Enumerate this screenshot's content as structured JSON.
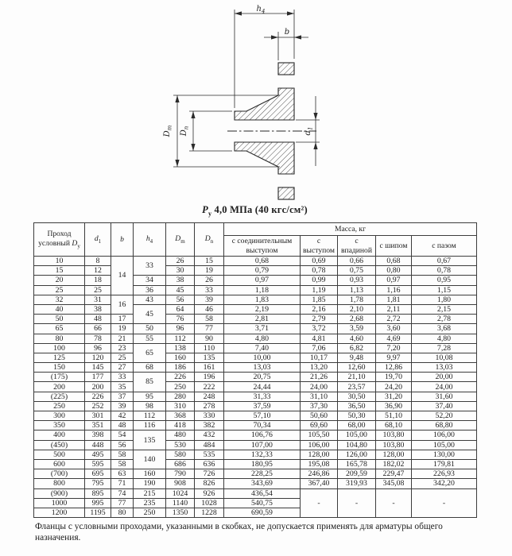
{
  "title": {
    "p": "P",
    "p_sub": "у",
    "rest": "4,0 МПа (40 кгс/см²)"
  },
  "footnote": "Фланцы с условными проходами, указанными в скобках, не допускается применять для арматуры общего назначения.",
  "drawing": {
    "labels": {
      "h_base": "h",
      "h_sub": "4",
      "b": "b",
      "dm_base": "D",
      "dm_sub": "m",
      "dn_base": "D",
      "dn_sub": "n",
      "d1_base": "d",
      "d1_sub": "1"
    }
  },
  "table": {
    "header": {
      "col1_line1": "Проход",
      "col1_line2": "условный",
      "col1_sym": "D",
      "col1_sub": "у",
      "d1_sym": "d",
      "d1_sub": "1",
      "b_sym": "b",
      "h4_sym": "h",
      "h4_sub": "4",
      "dm_sym": "D",
      "dm_sub": "m",
      "dn_sym": "D",
      "dn_sub": "n",
      "massa": "Масса, кг",
      "m1_line1": "с соединительным",
      "m1_line2": "выступом",
      "m2_line1": "с",
      "m2_line2": "выступом",
      "m3_line1": "с",
      "m3_line2": "впадиной",
      "m4": "с шипом",
      "m5": "с пазом"
    },
    "rows": [
      [
        "10",
        "8",
        {
          "v": "14",
          "rs": 4
        },
        {
          "v": "33",
          "rs": 2
        },
        "26",
        "15",
        "0,68",
        "0,69",
        "0,66",
        "0,68",
        "0,67"
      ],
      [
        "15",
        "12",
        null,
        null,
        "30",
        "19",
        "0,79",
        "0,78",
        "0,75",
        "0,80",
        "0,78"
      ],
      [
        "20",
        "18",
        null,
        "34",
        "38",
        "26",
        "0,97",
        "0,99",
        "0,93",
        "0,97",
        "0,95"
      ],
      [
        "25",
        "25",
        null,
        "36",
        "45",
        "33",
        "1,18",
        "1,19",
        "1,13",
        "1,16",
        "1,15"
      ],
      [
        "32",
        "31",
        {
          "v": "16",
          "rs": 2
        },
        "43",
        "56",
        "39",
        "1,83",
        "1,85",
        "1,78",
        "1,81",
        "1,80"
      ],
      [
        "40",
        "38",
        null,
        {
          "v": "45",
          "rs": 2
        },
        "64",
        "46",
        "2,19",
        "2,16",
        "2,10",
        "2,11",
        "2,15"
      ],
      [
        "50",
        "48",
        "17",
        null,
        "76",
        "58",
        "2,81",
        "2,79",
        "2,68",
        "2,72",
        "2,78"
      ],
      [
        "65",
        "66",
        "19",
        "50",
        "96",
        "77",
        "3,71",
        "3,72",
        "3,59",
        "3,60",
        "3,68"
      ],
      [
        "80",
        "78",
        "21",
        "55",
        "112",
        "90",
        "4,80",
        "4,81",
        "4,60",
        "4,69",
        "4,80"
      ],
      [
        "100",
        "96",
        "23",
        {
          "v": "65",
          "rs": 2
        },
        "138",
        "110",
        "7,40",
        "7,06",
        "6,82",
        "7,20",
        "7,28"
      ],
      [
        "125",
        "120",
        "25",
        null,
        "160",
        "135",
        "10,00",
        "10,17",
        "9,48",
        "9,97",
        "10,08"
      ],
      [
        "150",
        "145",
        "27",
        "68",
        "186",
        "161",
        "13,03",
        "13,20",
        "12,60",
        "12,86",
        "13,03"
      ],
      [
        "(175)",
        "177",
        "33",
        {
          "v": "85",
          "rs": 2
        },
        "226",
        "196",
        "20,75",
        "21,26",
        "21,10",
        "19,70",
        "20,00"
      ],
      [
        "200",
        "200",
        "35",
        null,
        "250",
        "222",
        "24,44",
        "24,00",
        "23,57",
        "24,20",
        "24,00"
      ],
      [
        "(225)",
        "226",
        "37",
        "95",
        "280",
        "248",
        "31,33",
        "31,10",
        "30,50",
        "31,20",
        "31,60"
      ],
      [
        "250",
        "252",
        "39",
        "98",
        "310",
        "278",
        "37,59",
        "37,30",
        "36,50",
        "36,90",
        "37,40"
      ],
      [
        "300",
        "301",
        "42",
        "112",
        "368",
        "330",
        "57,10",
        "50,60",
        "50,30",
        "51,10",
        "52,20"
      ],
      [
        "350",
        "351",
        "48",
        "116",
        "418",
        "382",
        "70,34",
        "69,60",
        "68,00",
        "68,10",
        "68,80"
      ],
      [
        "400",
        "398",
        "54",
        {
          "v": "135",
          "rs": 2
        },
        "480",
        "432",
        "106,76",
        "105,50",
        "105,00",
        "103,80",
        "106,00"
      ],
      [
        "(450)",
        "448",
        "56",
        null,
        "530",
        "484",
        "107,00",
        "106,00",
        "104,80",
        "103,80",
        "105,00"
      ],
      [
        "500",
        "495",
        "58",
        {
          "v": "140",
          "rs": 2
        },
        "580",
        "535",
        "132,33",
        "128,00",
        "126,00",
        "128,00",
        "130,00"
      ],
      [
        "600",
        "595",
        "58",
        null,
        "686",
        "636",
        "180,95",
        "195,08",
        "165,78",
        "182,02",
        "179,81"
      ],
      [
        "(700)",
        "695",
        "63",
        "160",
        "790",
        "726",
        "228,25",
        "246,86",
        "209,59",
        "229,47",
        "226,93"
      ],
      [
        "800",
        "795",
        "71",
        "190",
        "908",
        "826",
        "343,69",
        "367,40",
        "319,93",
        "345,08",
        "342,20"
      ],
      [
        "(900)",
        "895",
        "74",
        "215",
        "1024",
        "926",
        "436,54",
        {
          "v": "-",
          "rs": 3
        },
        {
          "v": "-",
          "rs": 3
        },
        {
          "v": "-",
          "rs": 3
        },
        {
          "v": "-",
          "rs": 3
        }
      ],
      [
        "1000",
        "995",
        "77",
        "235",
        "1140",
        "1028",
        "540,75",
        null,
        null,
        null,
        null
      ],
      [
        "1200",
        "1195",
        "80",
        "250",
        "1350",
        "1228",
        "690,59",
        null,
        null,
        null,
        null
      ]
    ]
  }
}
